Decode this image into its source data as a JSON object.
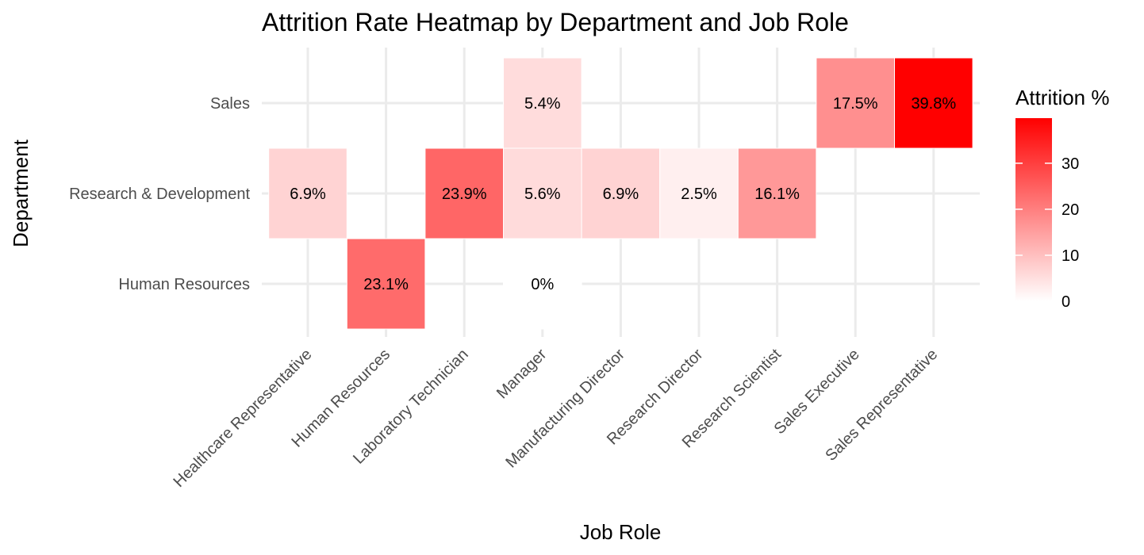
{
  "chart_data": {
    "type": "heatmap",
    "title": "Attrition Rate Heatmap by Department and Job Role",
    "xlabel": "Job Role",
    "ylabel": "Department",
    "x_categories": [
      "Healthcare Representative",
      "Human Resources",
      "Laboratory Technician",
      "Manager",
      "Manufacturing Director",
      "Research Director",
      "Research Scientist",
      "Sales Executive",
      "Sales Representative"
    ],
    "y_categories": [
      "Human Resources",
      "Research & Development",
      "Sales"
    ],
    "cells": [
      {
        "x": "Human Resources",
        "y": "Human Resources",
        "value": 23.1,
        "label": "23.1%"
      },
      {
        "x": "Manager",
        "y": "Human Resources",
        "value": 0,
        "label": "0%"
      },
      {
        "x": "Healthcare Representative",
        "y": "Research & Development",
        "value": 6.9,
        "label": "6.9%"
      },
      {
        "x": "Laboratory Technician",
        "y": "Research & Development",
        "value": 23.9,
        "label": "23.9%"
      },
      {
        "x": "Manager",
        "y": "Research & Development",
        "value": 5.6,
        "label": "5.6%"
      },
      {
        "x": "Manufacturing Director",
        "y": "Research & Development",
        "value": 6.9,
        "label": "6.9%"
      },
      {
        "x": "Research Director",
        "y": "Research & Development",
        "value": 2.5,
        "label": "2.5%"
      },
      {
        "x": "Research Scientist",
        "y": "Research & Development",
        "value": 16.1,
        "label": "16.1%"
      },
      {
        "x": "Manager",
        "y": "Sales",
        "value": 5.4,
        "label": "5.4%"
      },
      {
        "x": "Sales Executive",
        "y": "Sales",
        "value": 17.5,
        "label": "17.5%"
      },
      {
        "x": "Sales Representative",
        "y": "Sales",
        "value": 39.8,
        "label": "39.8%"
      }
    ],
    "legend": {
      "title": "Attrition %",
      "position": "right",
      "range": [
        0,
        39.8
      ],
      "ticks": [
        0,
        10,
        20,
        30
      ],
      "low_color": "#ffffff",
      "high_color": "#ff0000"
    },
    "grid": true
  }
}
